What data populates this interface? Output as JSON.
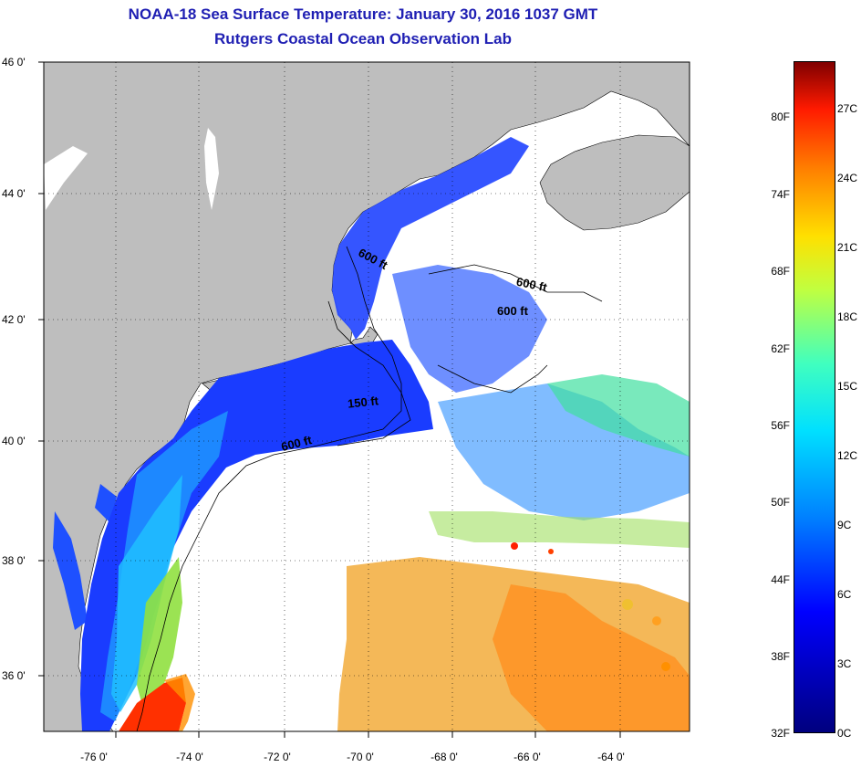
{
  "title": "NOAA-18 Sea Surface Temperature:  January 30, 2016 1037 GMT",
  "subtitle": "Rutgers Coastal Ocean Observation Lab",
  "lat_labels": [
    "46 0'",
    "44 0'",
    "42 0'",
    "40 0'",
    "38 0'",
    "36 0'"
  ],
  "lon_labels": [
    "-76 0'",
    "-74 0'",
    "-72 0'",
    "-70 0'",
    "-68 0'",
    "-66 0'",
    "-64 0'"
  ],
  "depth_contours": [
    "600 ft",
    "600 ft",
    "600 ft",
    "150 ft",
    "600 ft"
  ],
  "colorbar": {
    "fahrenheit_labels": [
      "80F",
      "74F",
      "68F",
      "62F",
      "56F",
      "50F",
      "44F",
      "38F",
      "32F"
    ],
    "celsius_labels": [
      "27C",
      "24C",
      "21C",
      "18C",
      "15C",
      "12C",
      "9C",
      "6C",
      "3C",
      "0C"
    ],
    "colors": [
      "#00007f",
      "#0000ff",
      "#0080ff",
      "#00e0ff",
      "#40ffbf",
      "#c0ff40",
      "#ffe000",
      "#ff8000",
      "#ff1a00",
      "#800000"
    ]
  },
  "land_color": "#bebebe"
}
